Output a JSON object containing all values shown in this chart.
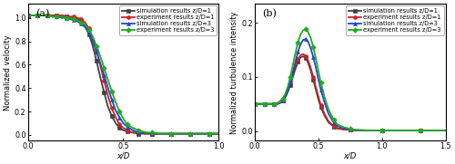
{
  "fig_width": 5.0,
  "fig_height": 1.81,
  "dpi": 100,
  "panel_a": {
    "title": "(a)",
    "xlabel": "x/D",
    "ylabel": "Normalized velocity",
    "xlim": [
      0.0,
      1.0
    ],
    "ylim": [
      -0.05,
      1.12
    ],
    "xticks": [
      0.0,
      0.5,
      1.0
    ],
    "yticks": [
      0.0,
      0.2,
      0.4,
      0.6,
      0.8,
      1.0
    ],
    "series": [
      {
        "label": "simulation results z/D=1",
        "color": "#404040",
        "marker": "s",
        "markersize": 2.8,
        "linewidth": 1.3,
        "x": [
          0.0,
          0.02,
          0.05,
          0.08,
          0.1,
          0.13,
          0.15,
          0.18,
          0.2,
          0.22,
          0.24,
          0.26,
          0.28,
          0.3,
          0.32,
          0.34,
          0.36,
          0.38,
          0.4,
          0.42,
          0.44,
          0.46,
          0.48,
          0.5,
          0.52,
          0.55,
          0.58,
          0.62,
          0.65,
          0.7,
          0.75,
          0.8,
          0.85,
          0.9,
          0.95,
          1.0
        ],
        "y": [
          1.02,
          1.02,
          1.02,
          1.02,
          1.02,
          1.02,
          1.02,
          1.02,
          1.01,
          1.01,
          1.0,
          0.99,
          0.97,
          0.93,
          0.86,
          0.76,
          0.63,
          0.49,
          0.36,
          0.24,
          0.16,
          0.1,
          0.06,
          0.04,
          0.03,
          0.02,
          0.01,
          0.01,
          0.01,
          0.01,
          0.01,
          0.01,
          0.01,
          0.01,
          0.01,
          0.01
        ]
      },
      {
        "label": "experiment results z/D=1",
        "color": "#cc2222",
        "marker": "o",
        "markersize": 2.8,
        "linewidth": 1.3,
        "x": [
          0.0,
          0.02,
          0.05,
          0.08,
          0.1,
          0.13,
          0.15,
          0.18,
          0.2,
          0.22,
          0.24,
          0.26,
          0.28,
          0.3,
          0.32,
          0.34,
          0.36,
          0.38,
          0.4,
          0.42,
          0.44,
          0.46,
          0.48,
          0.5,
          0.52,
          0.55,
          0.58,
          0.62,
          0.65,
          0.7,
          0.75,
          0.8,
          0.85,
          0.9,
          0.95,
          1.0
        ],
        "y": [
          1.02,
          1.02,
          1.02,
          1.02,
          1.02,
          1.02,
          1.02,
          1.02,
          1.01,
          1.01,
          1.01,
          1.0,
          0.99,
          0.96,
          0.91,
          0.83,
          0.72,
          0.59,
          0.46,
          0.33,
          0.23,
          0.15,
          0.09,
          0.06,
          0.04,
          0.02,
          0.02,
          0.01,
          0.01,
          0.01,
          0.01,
          0.01,
          0.01,
          0.01,
          0.01,
          0.01
        ]
      },
      {
        "label": "simulation results z/D=3",
        "color": "#2244cc",
        "marker": "^",
        "markersize": 2.8,
        "linewidth": 1.3,
        "x": [
          0.0,
          0.02,
          0.05,
          0.08,
          0.1,
          0.13,
          0.15,
          0.18,
          0.2,
          0.22,
          0.24,
          0.26,
          0.28,
          0.3,
          0.32,
          0.34,
          0.36,
          0.38,
          0.4,
          0.42,
          0.44,
          0.46,
          0.48,
          0.5,
          0.52,
          0.55,
          0.58,
          0.62,
          0.65,
          0.7,
          0.75,
          0.8,
          0.85,
          0.9,
          0.95,
          1.0
        ],
        "y": [
          1.02,
          1.02,
          1.02,
          1.02,
          1.02,
          1.01,
          1.01,
          1.0,
          1.0,
          0.99,
          0.98,
          0.97,
          0.95,
          0.92,
          0.87,
          0.8,
          0.71,
          0.61,
          0.51,
          0.4,
          0.3,
          0.21,
          0.15,
          0.1,
          0.07,
          0.04,
          0.02,
          0.02,
          0.01,
          0.01,
          0.01,
          0.01,
          0.01,
          0.01,
          0.01,
          0.01
        ]
      },
      {
        "label": "experiment results z/D=3",
        "color": "#22aa22",
        "marker": "D",
        "markersize": 2.8,
        "linewidth": 1.3,
        "x": [
          0.0,
          0.02,
          0.05,
          0.08,
          0.1,
          0.13,
          0.15,
          0.18,
          0.2,
          0.22,
          0.24,
          0.26,
          0.28,
          0.3,
          0.32,
          0.34,
          0.36,
          0.38,
          0.4,
          0.42,
          0.44,
          0.46,
          0.48,
          0.5,
          0.52,
          0.55,
          0.58,
          0.62,
          0.65,
          0.7,
          0.75,
          0.8,
          0.85,
          0.9,
          0.95,
          1.0
        ],
        "y": [
          1.02,
          1.02,
          1.02,
          1.02,
          1.02,
          1.01,
          1.01,
          1.01,
          1.0,
          1.0,
          0.99,
          0.98,
          0.96,
          0.94,
          0.9,
          0.84,
          0.76,
          0.67,
          0.57,
          0.47,
          0.37,
          0.28,
          0.2,
          0.14,
          0.09,
          0.06,
          0.04,
          0.02,
          0.02,
          0.01,
          0.01,
          0.01,
          0.01,
          0.01,
          0.01,
          0.01
        ]
      }
    ]
  },
  "panel_b": {
    "title": "(b)",
    "xlabel": "x/D",
    "ylabel": "Normalized turbulence intensity",
    "xlim": [
      0.0,
      1.5
    ],
    "ylim": [
      -0.018,
      0.235
    ],
    "xticks": [
      0.0,
      0.5,
      1.0,
      1.5
    ],
    "yticks": [
      0.0,
      0.1,
      0.2
    ],
    "series": [
      {
        "label": "simulation results z/D=1",
        "color": "#404040",
        "marker": "s",
        "markersize": 2.8,
        "linewidth": 1.3,
        "x": [
          0.0,
          0.02,
          0.05,
          0.08,
          0.1,
          0.13,
          0.15,
          0.18,
          0.2,
          0.22,
          0.24,
          0.26,
          0.28,
          0.3,
          0.32,
          0.34,
          0.36,
          0.38,
          0.4,
          0.42,
          0.44,
          0.46,
          0.48,
          0.5,
          0.52,
          0.55,
          0.58,
          0.62,
          0.65,
          0.7,
          0.75,
          0.8,
          0.9,
          1.0,
          1.1,
          1.2,
          1.3,
          1.4,
          1.5
        ],
        "y": [
          0.05,
          0.05,
          0.05,
          0.05,
          0.05,
          0.05,
          0.05,
          0.05,
          0.052,
          0.056,
          0.062,
          0.072,
          0.085,
          0.1,
          0.115,
          0.128,
          0.136,
          0.138,
          0.135,
          0.126,
          0.112,
          0.095,
          0.077,
          0.059,
          0.044,
          0.028,
          0.016,
          0.008,
          0.005,
          0.003,
          0.002,
          0.001,
          0.001,
          0.001,
          0.001,
          0.001,
          0.001,
          0.001,
          0.001
        ]
      },
      {
        "label": "experiment results z/D=1",
        "color": "#cc2222",
        "marker": "o",
        "markersize": 2.8,
        "linewidth": 1.3,
        "x": [
          0.0,
          0.02,
          0.05,
          0.08,
          0.1,
          0.13,
          0.15,
          0.18,
          0.2,
          0.22,
          0.24,
          0.26,
          0.28,
          0.3,
          0.32,
          0.34,
          0.36,
          0.38,
          0.4,
          0.42,
          0.44,
          0.46,
          0.48,
          0.5,
          0.52,
          0.55,
          0.58,
          0.62,
          0.65,
          0.7,
          0.75,
          0.8,
          0.9,
          1.0,
          1.1,
          1.2,
          1.3,
          1.4,
          1.5
        ],
        "y": [
          0.05,
          0.05,
          0.05,
          0.05,
          0.05,
          0.05,
          0.05,
          0.052,
          0.055,
          0.06,
          0.067,
          0.078,
          0.092,
          0.108,
          0.122,
          0.133,
          0.14,
          0.142,
          0.139,
          0.13,
          0.117,
          0.1,
          0.082,
          0.064,
          0.048,
          0.031,
          0.018,
          0.009,
          0.005,
          0.003,
          0.002,
          0.001,
          0.001,
          0.001,
          0.001,
          0.001,
          0.001,
          0.001,
          0.001
        ]
      },
      {
        "label": "simulation results z/D=3",
        "color": "#2244cc",
        "marker": "^",
        "markersize": 2.8,
        "linewidth": 1.3,
        "x": [
          0.0,
          0.02,
          0.05,
          0.08,
          0.1,
          0.13,
          0.15,
          0.18,
          0.2,
          0.22,
          0.24,
          0.26,
          0.28,
          0.3,
          0.32,
          0.34,
          0.36,
          0.38,
          0.4,
          0.42,
          0.44,
          0.46,
          0.48,
          0.5,
          0.52,
          0.55,
          0.58,
          0.62,
          0.65,
          0.7,
          0.75,
          0.8,
          0.9,
          1.0,
          1.1,
          1.2,
          1.3,
          1.4,
          1.5
        ],
        "y": [
          0.05,
          0.05,
          0.05,
          0.05,
          0.05,
          0.05,
          0.05,
          0.05,
          0.052,
          0.056,
          0.063,
          0.074,
          0.09,
          0.109,
          0.128,
          0.146,
          0.16,
          0.168,
          0.17,
          0.165,
          0.153,
          0.137,
          0.118,
          0.096,
          0.076,
          0.052,
          0.032,
          0.016,
          0.009,
          0.005,
          0.003,
          0.002,
          0.001,
          0.001,
          0.001,
          0.001,
          0.001,
          0.001,
          0.001
        ]
      },
      {
        "label": "experiment results z/D=3",
        "color": "#22aa22",
        "marker": "D",
        "markersize": 2.8,
        "linewidth": 1.3,
        "x": [
          0.0,
          0.02,
          0.05,
          0.08,
          0.1,
          0.13,
          0.15,
          0.18,
          0.2,
          0.22,
          0.24,
          0.26,
          0.28,
          0.3,
          0.32,
          0.34,
          0.36,
          0.38,
          0.4,
          0.42,
          0.44,
          0.46,
          0.48,
          0.5,
          0.52,
          0.55,
          0.58,
          0.62,
          0.65,
          0.7,
          0.75,
          0.8,
          0.9,
          1.0,
          1.1,
          1.2,
          1.3,
          1.4,
          1.5
        ],
        "y": [
          0.05,
          0.05,
          0.05,
          0.05,
          0.05,
          0.05,
          0.05,
          0.051,
          0.054,
          0.059,
          0.068,
          0.082,
          0.1,
          0.122,
          0.144,
          0.164,
          0.178,
          0.186,
          0.188,
          0.183,
          0.172,
          0.155,
          0.135,
          0.112,
          0.089,
          0.062,
          0.04,
          0.021,
          0.012,
          0.007,
          0.004,
          0.002,
          0.001,
          0.001,
          0.001,
          0.001,
          0.001,
          0.001,
          0.001
        ]
      }
    ]
  },
  "legend_fontsize": 4.8,
  "axis_fontsize": 6.0,
  "tick_fontsize": 5.8,
  "title_fontsize": 8.0,
  "background_color": "#ffffff"
}
